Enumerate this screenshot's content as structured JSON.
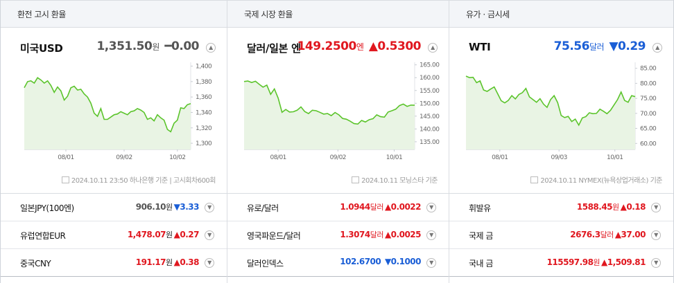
{
  "colors": {
    "up": "#e0171f",
    "down": "#1a5ed6",
    "line": "#5bc42b",
    "area": "#e9f4e4"
  },
  "columns": [
    {
      "header": "환전 고시 환율",
      "main": {
        "name": "미국USD",
        "price": "1,351.50",
        "unit": "원",
        "change": "━0.00",
        "direction": "flat",
        "footnote": "2024.10.11 23:50 하나은행 기준 | 고시회차600회"
      },
      "rows": [
        {
          "name": "일본JPY(100엔)",
          "price": "906.10",
          "unit": "원",
          "change": "▼3.33",
          "direction": "down"
        },
        {
          "name": "유럽연합EUR",
          "price": "1,478.07",
          "unit": "원",
          "change": "▲0.27",
          "direction": "up"
        },
        {
          "name": "중국CNY",
          "price": "191.17",
          "unit": "원",
          "change": "▲0.38",
          "direction": "up"
        }
      ]
    },
    {
      "header": "국제 시장 환율",
      "main": {
        "name": "달러/일본 엔",
        "price": "149.2500",
        "unit": "엔",
        "change": "▲0.5300",
        "direction": "up",
        "footnote": "2024.10.11 모닝스타 기준"
      },
      "rows": [
        {
          "name": "유로/달러",
          "price": "1.0944",
          "unit": "달러",
          "change": "▲0.0022",
          "direction": "up"
        },
        {
          "name": "영국파운드/달러",
          "price": "1.3074",
          "unit": "달러",
          "change": "▲0.0025",
          "direction": "up"
        },
        {
          "name": "달러인덱스",
          "price": "102.6700",
          "unit": "",
          "change": "▼0.1000",
          "direction": "down"
        }
      ]
    },
    {
      "header": "유가 · 금시세",
      "main": {
        "name": "WTI",
        "price": "75.56",
        "unit": "달러",
        "change": "▼0.29",
        "direction": "down",
        "footnote": "2024.10.11 NYMEX(뉴욕상업거래소) 기준"
      },
      "rows": [
        {
          "name": "휘발유",
          "price": "1588.45",
          "unit": "원",
          "change": "▲0.18",
          "direction": "up"
        },
        {
          "name": "국제 금",
          "price": "2676.3",
          "unit": "달러",
          "change": "▲37.00",
          "direction": "up"
        },
        {
          "name": "국내 금",
          "price": "115597.98",
          "unit": "원",
          "change": "▲1,509.81",
          "direction": "up"
        }
      ]
    }
  ],
  "chart_data": [
    {
      "type": "area",
      "series_name": "미국USD",
      "xticks": [
        "08/01",
        "09/02",
        "10/02"
      ],
      "yticks": [
        1300,
        1320,
        1340,
        1360,
        1380,
        1400
      ],
      "ylim": [
        1292,
        1405
      ],
      "values": [
        1372,
        1380,
        1381,
        1378,
        1385,
        1382,
        1378,
        1381,
        1375,
        1366,
        1373,
        1368,
        1356,
        1361,
        1372,
        1374,
        1369,
        1370,
        1364,
        1360,
        1352,
        1339,
        1335,
        1345,
        1331,
        1331,
        1334,
        1337,
        1338,
        1341,
        1339,
        1337,
        1341,
        1342,
        1345,
        1343,
        1340,
        1331,
        1333,
        1329,
        1337,
        1333,
        1330,
        1318,
        1315,
        1326,
        1330,
        1346,
        1345,
        1350,
        1351.5
      ]
    },
    {
      "type": "area",
      "series_name": "달러/일본 엔",
      "xticks": [
        "08/01",
        "09/02",
        "10/01"
      ],
      "yticks": [
        135,
        140,
        145,
        150,
        155,
        160,
        165
      ],
      "ylim": [
        132,
        166
      ],
      "values": [
        158.5,
        158.7,
        158.1,
        158.6,
        157.4,
        156.3,
        157.1,
        153.5,
        155.6,
        152.0,
        146.5,
        147.6,
        146.6,
        146.7,
        147.3,
        148.6,
        146.8,
        146.0,
        147.3,
        147.1,
        146.5,
        145.8,
        146.0,
        145.2,
        146.4,
        145.5,
        144.1,
        143.8,
        143.0,
        142.1,
        141.9,
        143.3,
        142.7,
        143.6,
        144.0,
        145.5,
        144.8,
        144.6,
        146.6,
        147.1,
        147.7,
        149.1,
        149.7,
        148.8,
        149.3,
        149.25
      ]
    },
    {
      "type": "area",
      "series_name": "WTI",
      "xticks": [
        "08/01",
        "09/03",
        "10/01"
      ],
      "yticks": [
        60,
        65,
        70,
        75,
        80,
        85
      ],
      "ylim": [
        58,
        87
      ],
      "values": [
        82.4,
        81.9,
        82.0,
        80.2,
        80.8,
        77.8,
        77.3,
        78.1,
        78.8,
        76.5,
        74.2,
        73.5,
        74.3,
        75.9,
        74.8,
        76.3,
        76.9,
        78.3,
        75.5,
        74.6,
        73.7,
        74.9,
        73.1,
        72.0,
        74.6,
        75.9,
        73.6,
        69.3,
        68.6,
        69.0,
        67.3,
        68.1,
        66.1,
        68.5,
        68.9,
        70.2,
        69.9,
        70.0,
        71.4,
        70.7,
        69.9,
        71.0,
        72.8,
        74.6,
        77.1,
        74.3,
        73.7,
        75.9,
        75.56
      ]
    }
  ]
}
